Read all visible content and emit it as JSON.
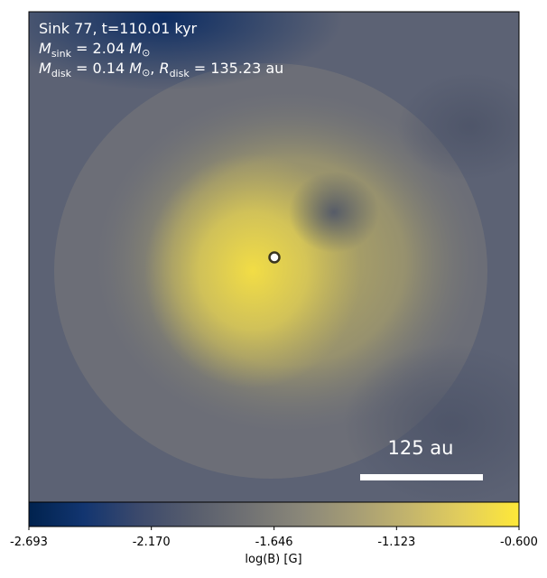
{
  "chart_data": {
    "type": "image",
    "annotations": [
      {
        "parts": [
          "Sink 77, t=110.01 kyr"
        ]
      },
      {
        "parts": [
          "M",
          "sink",
          " = 2.04 ",
          "M",
          "⊙"
        ]
      },
      {
        "parts": [
          "M",
          "disk",
          " = 0.14 ",
          "M",
          "⊙",
          ", ",
          "R",
          "disk",
          " = 135.23 au"
        ]
      }
    ],
    "scale_bar": "125 au",
    "colorbar": {
      "label": "log(B) [G]",
      "colormap": "cividis",
      "lim": [
        -2.693,
        -0.6
      ],
      "ticks": [
        {
          "value": -2.693,
          "label": "-2.693"
        },
        {
          "value": -2.17,
          "label": "-2.170"
        },
        {
          "value": -1.646,
          "label": "-1.646"
        },
        {
          "value": -1.123,
          "label": "-1.123"
        },
        {
          "value": -0.6,
          "label": "-0.600"
        }
      ]
    }
  }
}
